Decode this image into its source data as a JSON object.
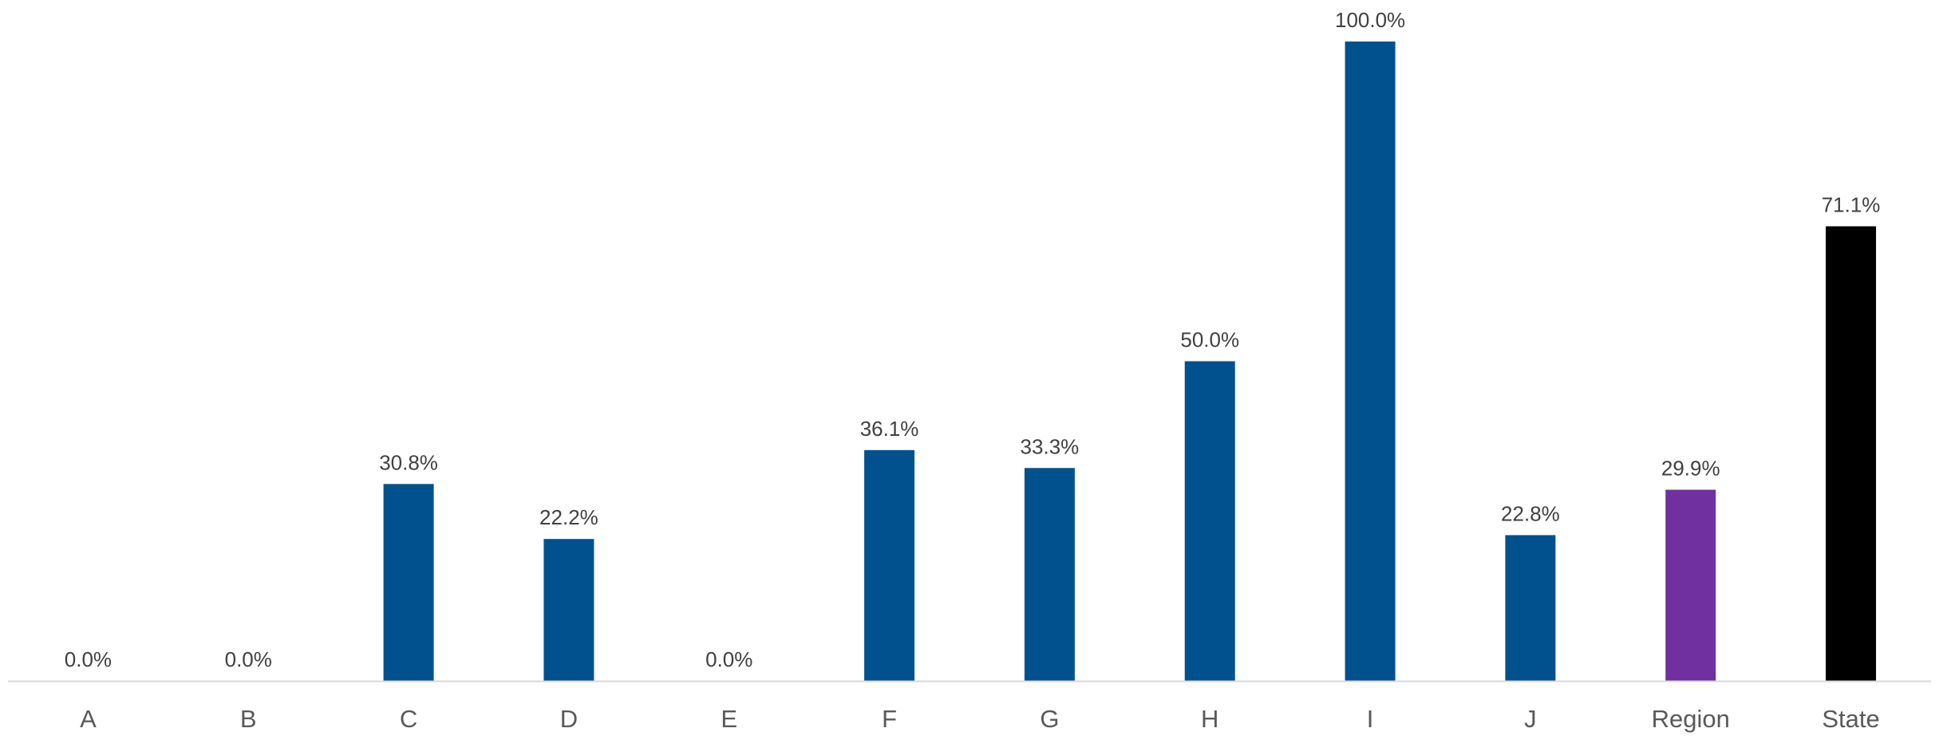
{
  "chart_data": {
    "type": "bar",
    "title": "",
    "xlabel": "",
    "ylabel": "",
    "ylim": [
      0,
      100
    ],
    "grid": false,
    "legend": "none",
    "categories": [
      "A",
      "B",
      "C",
      "D",
      "E",
      "F",
      "G",
      "H",
      "I",
      "J",
      "Region",
      "State"
    ],
    "values": [
      0.0,
      0.0,
      30.8,
      22.2,
      0.0,
      36.1,
      33.3,
      50.0,
      100.0,
      22.8,
      29.9,
      71.1
    ],
    "data_labels": [
      "0.0%",
      "0.0%",
      "30.8%",
      "22.2%",
      "0.0%",
      "36.1%",
      "33.3%",
      "50.0%",
      "100.0%",
      "22.8%",
      "29.9%",
      "71.1%"
    ],
    "bar_colors": [
      "#00518E",
      "#00518E",
      "#00518E",
      "#00518E",
      "#00518E",
      "#00518E",
      "#00518E",
      "#00518E",
      "#00518E",
      "#00518E",
      "#7030A0",
      "#000000"
    ],
    "axis_color": "#D9D9D9",
    "label_color": "#404040",
    "tick_color": "#595959"
  }
}
